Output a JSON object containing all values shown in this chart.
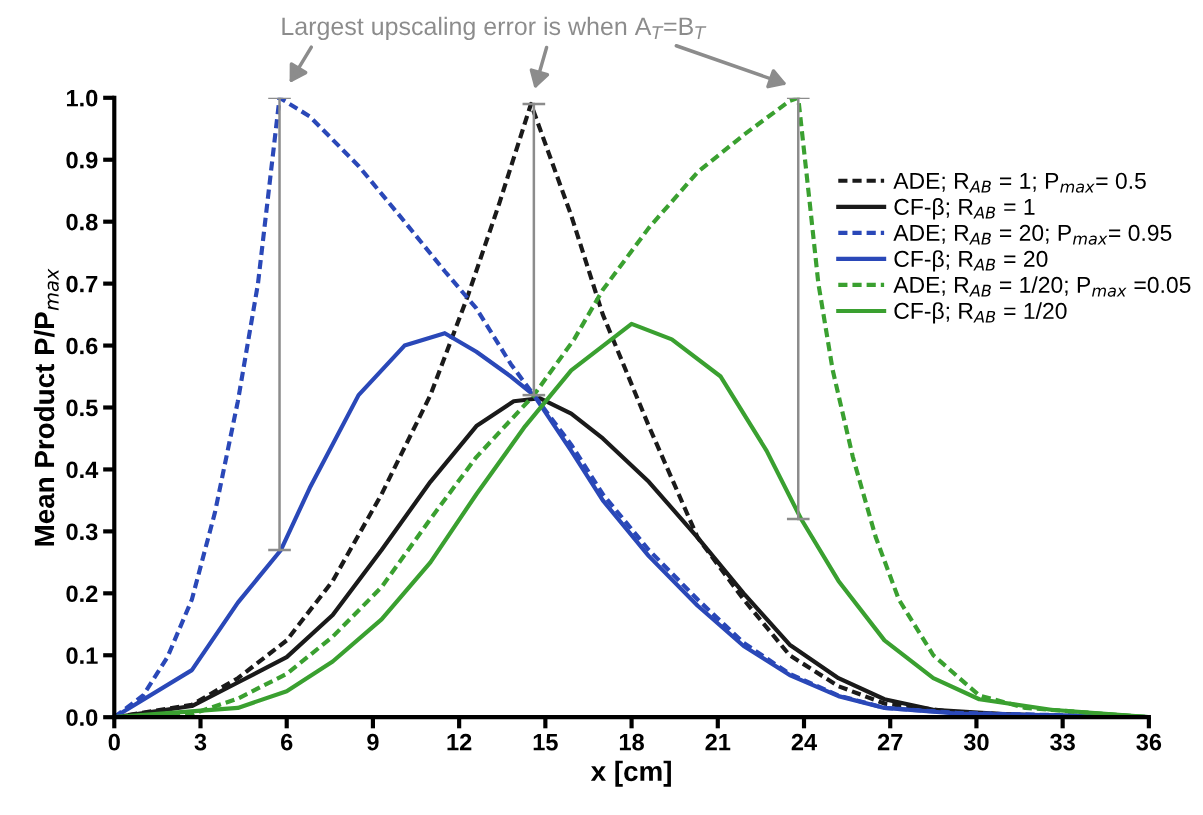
{
  "chart_data": {
    "type": "line",
    "title": "Largest upscaling error is when A$_{T}$=B$_{T}$",
    "xlabel": "x [cm]",
    "ylabel": "Mean Product P/P$_{max}$",
    "xlim": [
      0,
      36
    ],
    "ylim": [
      0,
      1.0
    ],
    "xticks": [
      0,
      3,
      6,
      9,
      12,
      15,
      18,
      21,
      24,
      27,
      30,
      33,
      36
    ],
    "yticks": [
      {
        "value": 0,
        "label": "0.0"
      },
      {
        "value": 0.1,
        "label": "0.1"
      },
      {
        "value": 0.2,
        "label": "0.2"
      },
      {
        "value": 0.3,
        "label": "0.3"
      },
      {
        "value": 0.4,
        "label": "0.4"
      },
      {
        "value": 0.5,
        "label": "0.5"
      },
      {
        "value": 0.6,
        "label": "0.6"
      },
      {
        "value": 0.7,
        "label": "0.7"
      },
      {
        "value": 0.8,
        "label": "0.8"
      },
      {
        "value": 0.9,
        "label": "0.9"
      },
      {
        "value": 1.0,
        "label": "1.0"
      }
    ],
    "grid": false,
    "legend": "top right",
    "series": [
      {
        "name": "ADE; R$_{AB}$ = 1; P$_{max}$= 0.5",
        "color": "#1a1a1a",
        "line_style": "dashed",
        "x": [
          0,
          2.7,
          4.3,
          6.0,
          7.6,
          9.3,
          11.0,
          12.3,
          13.4,
          14.5,
          15.9,
          17.0,
          18.6,
          20.3,
          21.9,
          23.5,
          25.2,
          26.8,
          29.3,
          32,
          36
        ],
        "values": [
          0,
          0.02,
          0.063,
          0.124,
          0.22,
          0.36,
          0.52,
          0.68,
          0.83,
          0.99,
          0.81,
          0.65,
          0.47,
          0.29,
          0.19,
          0.1,
          0.05,
          0.022,
          0.008,
          0.003,
          0
        ]
      },
      {
        "name": "CF-β; R$_{AB}$ = 1",
        "color": "#1a1a1a",
        "line_style": "solid",
        "x": [
          0,
          2.7,
          4.3,
          6.0,
          7.6,
          9.3,
          11.0,
          12.6,
          13.9,
          14.8,
          15.9,
          17.0,
          18.6,
          20.3,
          21.9,
          23.5,
          25.2,
          26.8,
          28.5,
          30.9,
          33,
          36
        ],
        "values": [
          0,
          0.018,
          0.056,
          0.097,
          0.165,
          0.27,
          0.38,
          0.47,
          0.51,
          0.515,
          0.49,
          0.45,
          0.38,
          0.29,
          0.2,
          0.117,
          0.063,
          0.029,
          0.012,
          0.005,
          0.002,
          0
        ]
      },
      {
        "name": "ADE; R$_{AB}$ = 20; P$_{max}$= 0.95",
        "color": "#2a48b8",
        "line_style": "dashed",
        "x": [
          0,
          1.0,
          1.85,
          2.7,
          3.5,
          4.3,
          5.0,
          5.5,
          5.75,
          6.8,
          8.5,
          10.1,
          11.5,
          12.6,
          13.8,
          14.6,
          15.9,
          17.0,
          18.6,
          20.3,
          21.9,
          23.5,
          25.2,
          26.8,
          29.3,
          36
        ],
        "values": [
          0,
          0.035,
          0.097,
          0.19,
          0.33,
          0.51,
          0.7,
          0.9,
          1.0,
          0.97,
          0.89,
          0.8,
          0.72,
          0.66,
          0.57,
          0.52,
          0.44,
          0.36,
          0.27,
          0.19,
          0.12,
          0.07,
          0.035,
          0.015,
          0.007,
          0
        ]
      },
      {
        "name": "CF-β; R$_{AB}$ = 20",
        "color": "#2a48b8",
        "line_style": "solid",
        "x": [
          0,
          2.7,
          4.3,
          5.8,
          6.8,
          8.5,
          10.1,
          11.5,
          12.6,
          13.8,
          14.6,
          15.9,
          17.0,
          18.6,
          20.3,
          21.9,
          23.5,
          25.2,
          26.8,
          29.3,
          36
        ],
        "values": [
          0,
          0.076,
          0.185,
          0.27,
          0.37,
          0.52,
          0.6,
          0.62,
          0.59,
          0.55,
          0.52,
          0.43,
          0.35,
          0.26,
          0.18,
          0.115,
          0.068,
          0.034,
          0.015,
          0.006,
          0
        ]
      },
      {
        "name": "ADE; R$_{AB}$ = 1/20; P$_{max}$ =0.05",
        "color": "#3aa030",
        "line_style": "dashed",
        "x": [
          0,
          2.7,
          4.3,
          6.0,
          7.6,
          9.3,
          11.0,
          12.6,
          14.6,
          16.0,
          17.0,
          18.6,
          20.3,
          21.9,
          23.5,
          23.8,
          24.2,
          24.5,
          25.0,
          25.7,
          26.5,
          27.3,
          28.5,
          30.1,
          31.7,
          36
        ],
        "values": [
          0,
          0.005,
          0.03,
          0.07,
          0.13,
          0.21,
          0.32,
          0.42,
          0.52,
          0.61,
          0.69,
          0.79,
          0.88,
          0.94,
          0.995,
          1.0,
          0.83,
          0.7,
          0.56,
          0.42,
          0.29,
          0.19,
          0.1,
          0.035,
          0.015,
          0
        ]
      },
      {
        "name": "CF-β; R$_{AB}$ = 1/20",
        "color": "#3aa030",
        "line_style": "solid",
        "x": [
          0,
          4.3,
          6.0,
          7.6,
          9.3,
          11.0,
          12.6,
          14.3,
          15.9,
          18.0,
          19.4,
          21.1,
          22.7,
          23.9,
          25.2,
          26.8,
          28.5,
          30.1,
          32.6,
          36
        ],
        "values": [
          0,
          0.015,
          0.042,
          0.09,
          0.158,
          0.25,
          0.36,
          0.47,
          0.56,
          0.635,
          0.61,
          0.55,
          0.43,
          0.32,
          0.22,
          0.124,
          0.063,
          0.029,
          0.012,
          0
        ]
      },
      {
        "color": "#8c8c8c",
        "line_style": "solid",
        "x": [
          5.75,
          5.75
        ],
        "values": [
          0.27,
          1.0
        ]
      },
      {
        "color": "#8c8c8c",
        "line_style": "solid",
        "x": [
          14.6,
          14.6
        ],
        "values": [
          0.52,
          0.99
        ]
      },
      {
        "color": "#8c8c8c",
        "line_style": "solid",
        "x": [
          23.8,
          23.8
        ],
        "values": [
          0.32,
          1.0
        ]
      }
    ]
  }
}
